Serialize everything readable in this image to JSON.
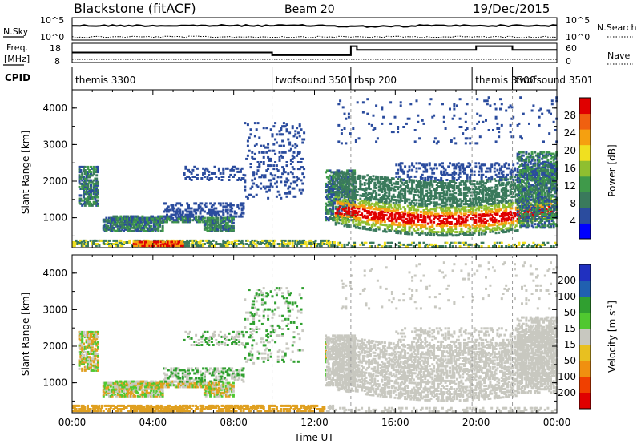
{
  "header": {
    "title": "Blackstone (fitACF)",
    "beam": "Beam 20",
    "date": "19/Dec/2015"
  },
  "chart_data": [
    {
      "type": "line",
      "panel": "noise",
      "left_label": "N.Sky",
      "right_label": "N.Search",
      "left_ticks": [
        "10^5",
        "10^0"
      ],
      "right_ticks": [
        "10^5",
        "10^0"
      ]
    },
    {
      "type": "line",
      "panel": "frequency",
      "left_label_line1": "Freq.",
      "left_label_line2": "[MHz]",
      "right_label": "Nave",
      "left_ticks": [
        "18",
        "8"
      ],
      "right_ticks": [
        "60",
        "0"
      ],
      "steps": [
        {
          "from": 0.0,
          "to": 9.9,
          "freq_level": 0.52
        },
        {
          "from": 9.9,
          "to": 13.8,
          "freq_level": 0.38
        },
        {
          "from": 13.8,
          "to": 14.1,
          "freq_level": 0.85
        },
        {
          "from": 14.1,
          "to": 20.0,
          "freq_level": 0.66
        },
        {
          "from": 20.0,
          "to": 21.8,
          "freq_level": 0.85
        },
        {
          "from": 21.8,
          "to": 24.0,
          "freq_level": 0.66
        }
      ]
    },
    {
      "type": "table",
      "panel": "cpid",
      "label": "CPID",
      "modes": [
        {
          "name": "themis 3300",
          "start": 0.0
        },
        {
          "name": "twofsound 3501",
          "start": 9.9
        },
        {
          "name": "rbsp 200",
          "start": 13.8
        },
        {
          "name": "themis 3300",
          "start": 19.8
        },
        {
          "name": "twofsound 3501",
          "start": 21.8
        }
      ]
    },
    {
      "type": "heatmap",
      "panel": "power",
      "ylabel": "Slant Range [km]",
      "ylim": [
        180,
        4500
      ],
      "yticks": [
        "1000",
        "2000",
        "3000",
        "4000"
      ],
      "colorbar_label": "Power [dB]",
      "colorbar_ticks": [
        "28",
        "24",
        "20",
        "16",
        "12",
        "8",
        "4"
      ],
      "colorbar_range": [
        0,
        32
      ]
    },
    {
      "type": "heatmap",
      "panel": "velocity",
      "ylabel": "Slant Range [km]",
      "ylim": [
        180,
        4500
      ],
      "yticks": [
        "1000",
        "2000",
        "3000",
        "4000"
      ],
      "colorbar_label": "Velocity [m s",
      "colorbar_label_sup": "-1",
      "colorbar_label_end": "]",
      "colorbar_ticks": [
        "200",
        "100",
        "50",
        "15",
        "-15",
        "-50",
        "-100",
        "-200"
      ]
    }
  ],
  "xaxis": {
    "xlim": [
      0,
      24
    ],
    "xlabel": "Time UT",
    "xticks": [
      "00:00",
      "04:00",
      "08:00",
      "12:00",
      "16:00",
      "20:00",
      "00:00"
    ],
    "xtick_values": [
      0,
      4,
      8,
      12,
      16,
      20,
      24
    ],
    "mode_change_times": [
      9.9,
      13.8,
      19.8,
      21.8
    ]
  },
  "colors": {
    "power_scale": [
      "#0000ff",
      "#2b4c9e",
      "#3a7a5c",
      "#3f9a4a",
      "#8fbf30",
      "#f0e020",
      "#f5a010",
      "#f06010",
      "#e00000"
    ],
    "velocity_scale": [
      "#2030c0",
      "#2060b0",
      "#30a030",
      "#50c830",
      "#c8c8c0",
      "#e8c020",
      "#f09010",
      "#f04000",
      "#e00000"
    ],
    "echo_ground": "#e0a020",
    "echo_gs": "#c8c8c0"
  }
}
